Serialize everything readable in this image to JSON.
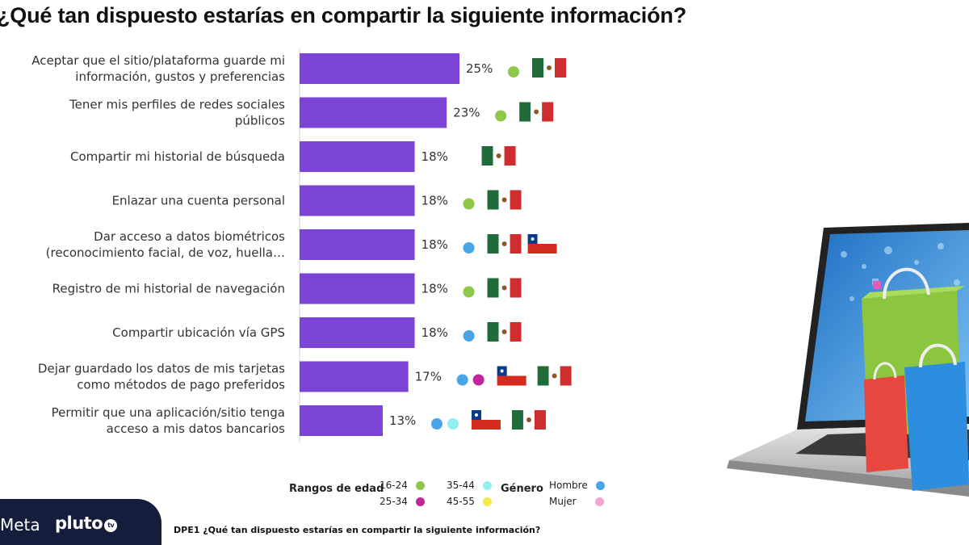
{
  "title": "¿Qué tan dispuesto estarías en compartir la siguiente información?",
  "chart_data": {
    "type": "bar",
    "orientation": "horizontal",
    "value_suffix": "%",
    "xlim": [
      0,
      25
    ],
    "bar_color": "#7b44d4",
    "categories": [
      [
        "Aceptar que el sitio/plataforma guarde mi",
        "información, gustos y preferencias"
      ],
      [
        "Tener mis perfiles de redes sociales",
        "públicos"
      ],
      [
        "Compartir mi historial de búsqueda"
      ],
      [
        "Enlazar una cuenta personal"
      ],
      [
        "Dar acceso a datos biométricos",
        "(reconocimiento facial, de voz, huella…"
      ],
      [
        "Registro de mi historial de navegación"
      ],
      [
        "Compartir ubicación vía GPS"
      ],
      [
        "Dejar guardado los datos de mis tarjetas",
        "como métodos de pago preferidos"
      ],
      [
        "Permitir que una aplicación/sitio tenga",
        "acceso a mis datos bancarios"
      ]
    ],
    "values": [
      25,
      23,
      18,
      18,
      18,
      18,
      18,
      17,
      13
    ],
    "markers": [
      {
        "dots": [
          "#8fc74a"
        ],
        "flags": [
          "mexico"
        ]
      },
      {
        "dots": [
          "#8fc74a"
        ],
        "flags": [
          "mexico"
        ]
      },
      {
        "dots": [],
        "flags": [
          "mexico"
        ]
      },
      {
        "dots": [
          "#8fc74a"
        ],
        "flags": [
          "mexico"
        ]
      },
      {
        "dots": [
          "#4aa5e8"
        ],
        "flags": [
          "mexico",
          "chile"
        ]
      },
      {
        "dots": [
          "#8fc74a"
        ],
        "flags": [
          "mexico"
        ]
      },
      {
        "dots": [
          "#4aa5e8"
        ],
        "flags": [
          "mexico"
        ]
      },
      {
        "dots": [
          "#4aa5e8",
          "#c2259c"
        ],
        "flags": [
          "chile",
          "mexico"
        ]
      },
      {
        "dots": [
          "#4aa5e8",
          "#8ff0ee"
        ],
        "flags": [
          "chile",
          "mexico"
        ]
      }
    ]
  },
  "legend": {
    "age_title": "Rangos de edad",
    "age_items": [
      {
        "label": "16-24",
        "color": "#8fc74a"
      },
      {
        "label": "25-34",
        "color": "#c2259c"
      },
      {
        "label": "35-44",
        "color": "#8ff0ee"
      },
      {
        "label": "45-55",
        "color": "#f7e94a"
      }
    ],
    "gender_title": "Género",
    "gender_items": [
      {
        "label": "Hombre",
        "color": "#4aa5e8"
      },
      {
        "label": "Mujer",
        "color": "#f2a6d3"
      }
    ]
  },
  "footer": {
    "meta_logo": "Meta",
    "pluto_logo": "pluto",
    "pluto_tv": "tv",
    "source": "DPE1 ¿Qué tan dispuesto estarías en compartir la siguiente información?"
  }
}
